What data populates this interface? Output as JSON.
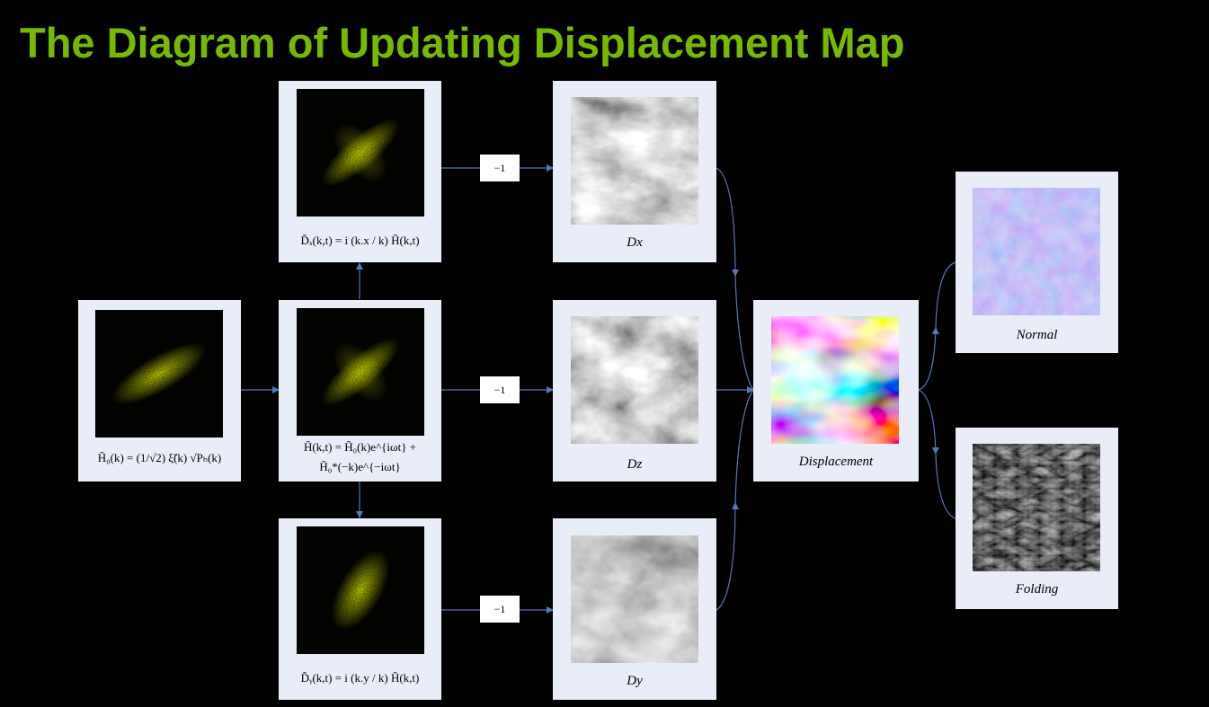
{
  "title": "The Diagram of Updating Displacement Map",
  "colors": {
    "title": "#76b900",
    "arrow": "#5577bb",
    "card": "#e8edf7"
  },
  "fft_label": "−1",
  "nodes": {
    "h0": {
      "formula": "H̃₀(k) = (1/√2) ξ̃(k) √Pₕ(k)"
    },
    "htilde": {
      "formula_line1": "H̃(k,t) = H̃₀(k)e^{iωt} +",
      "formula_line2": "H̃₀*(−k)e^{−iωt}"
    },
    "dx_spec": {
      "formula": "D̃ₓ(k,t) = i (k.x / k) H̃(k,t)"
    },
    "dy_spec": {
      "formula": "D̃ᵧ(k,t) = i (k.y / k) H̃(k,t)"
    },
    "dx": {
      "caption": "Dx"
    },
    "dz": {
      "caption": "Dz"
    },
    "dy": {
      "caption": "Dy"
    },
    "displacement": {
      "caption": "Displacement"
    },
    "normal": {
      "caption": "Normal"
    },
    "folding": {
      "caption": "Folding"
    }
  }
}
